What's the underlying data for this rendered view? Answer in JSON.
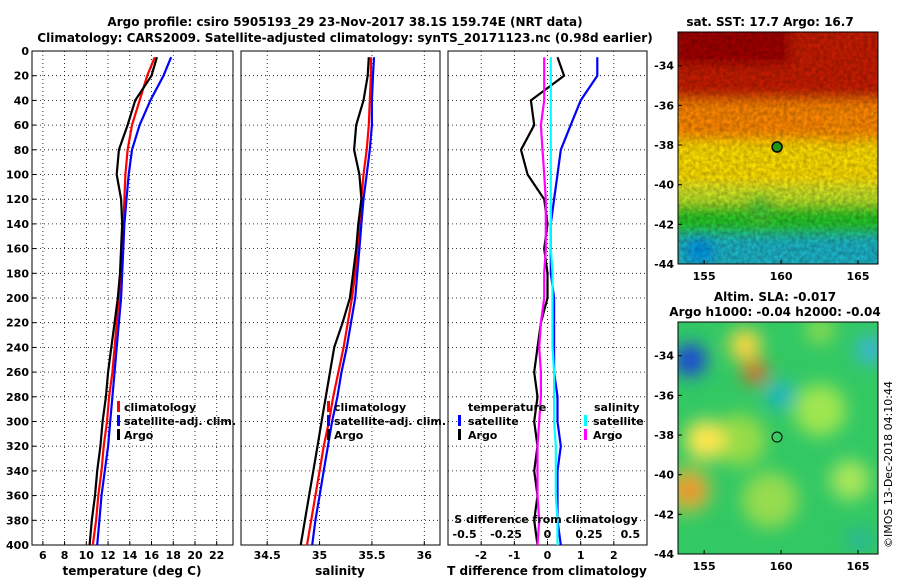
{
  "header": {
    "title1": "Argo profile: csiro 5905193_29 23-Nov-2017 38.1S 159.74E (NRT data)",
    "title2": "Climatology: CARS2009. Satellite-adjusted climatology: synTS_20171123.nc (0.98d earlier)"
  },
  "credit": "©IMOS 13-Dec-2018 04:10:44",
  "colors": {
    "clim": "#ff0000",
    "sat": "#0000ff",
    "argo": "#000000",
    "sdiff_sat": "#00ffff",
    "sdiff_argo": "#ff00ff"
  },
  "chart_data": [
    {
      "type": "line",
      "id": "temperature",
      "xlabel": "temperature (deg C)",
      "xlim": [
        5,
        23.5
      ],
      "xticks": [
        6,
        8,
        10,
        12,
        14,
        16,
        18,
        20,
        22
      ],
      "ylim": [
        0,
        400
      ],
      "yticks": [
        0,
        20,
        40,
        60,
        80,
        100,
        120,
        140,
        160,
        180,
        200,
        220,
        240,
        260,
        280,
        300,
        320,
        340,
        360,
        380,
        400
      ],
      "grid": true,
      "legend": [
        "climatology",
        "satellite-adj. clim.",
        "Argo"
      ],
      "depth": [
        5,
        20,
        40,
        60,
        80,
        100,
        120,
        140,
        160,
        180,
        200,
        220,
        240,
        260,
        280,
        300,
        320,
        340,
        360,
        380,
        400
      ],
      "series": [
        {
          "name": "climatology",
          "values": [
            16.3,
            15.6,
            14.9,
            14.2,
            13.8,
            13.6,
            13.5,
            13.4,
            13.3,
            13.2,
            13.0,
            12.8,
            12.6,
            12.4,
            12.1,
            11.9,
            11.6,
            11.4,
            11.1,
            10.9,
            10.6
          ]
        },
        {
          "name": "satellite-adj. clim.",
          "values": [
            17.8,
            17.1,
            15.9,
            14.9,
            14.2,
            13.9,
            13.7,
            13.5,
            13.4,
            13.3,
            13.2,
            13.0,
            12.8,
            12.6,
            12.4,
            12.2,
            12.0,
            11.7,
            11.4,
            11.2,
            11.0
          ]
        },
        {
          "name": "Argo",
          "values": [
            16.5,
            16.0,
            14.5,
            13.8,
            13.0,
            12.8,
            13.2,
            13.3,
            13.2,
            13.1,
            12.9,
            12.6,
            12.3,
            12.0,
            11.8,
            11.5,
            11.3,
            11.0,
            10.8,
            10.5,
            10.3
          ]
        }
      ]
    },
    {
      "type": "line",
      "id": "salinity",
      "xlabel": "salinity",
      "xlim": [
        34.25,
        36.15
      ],
      "xticks": [
        34.5,
        35,
        35.5,
        36
      ],
      "ylim": [
        0,
        400
      ],
      "grid": true,
      "legend": [
        "climatology",
        "satellite-adj. clim.",
        "Argo"
      ],
      "depth": [
        5,
        20,
        40,
        60,
        80,
        100,
        120,
        140,
        160,
        180,
        200,
        220,
        240,
        260,
        280,
        300,
        320,
        340,
        360,
        380,
        400
      ],
      "series": [
        {
          "name": "climatology",
          "values": [
            35.49,
            35.49,
            35.48,
            35.47,
            35.45,
            35.42,
            35.4,
            35.38,
            35.36,
            35.34,
            35.31,
            35.27,
            35.23,
            35.18,
            35.13,
            35.09,
            35.04,
            35.0,
            34.96,
            34.92,
            34.88
          ]
        },
        {
          "name": "satellite-adj. clim.",
          "values": [
            35.52,
            35.51,
            35.5,
            35.5,
            35.48,
            35.45,
            35.42,
            35.4,
            35.38,
            35.36,
            35.34,
            35.3,
            35.26,
            35.21,
            35.17,
            35.12,
            35.08,
            35.04,
            35.0,
            34.96,
            34.93
          ]
        },
        {
          "name": "Argo",
          "values": [
            35.47,
            35.46,
            35.42,
            35.35,
            35.33,
            35.38,
            35.4,
            35.37,
            35.35,
            35.32,
            35.29,
            35.22,
            35.14,
            35.1,
            35.06,
            35.02,
            34.98,
            34.94,
            34.9,
            34.86,
            34.82
          ]
        }
      ]
    },
    {
      "type": "line",
      "id": "difference",
      "xlabel": "T difference from climatology",
      "xlim": [
        -3,
        3
      ],
      "xticks": [
        -2,
        -1,
        0,
        1,
        2
      ],
      "ylim": [
        0,
        400
      ],
      "grid": true,
      "legend_temperature": {
        "title": "temperature",
        "entries": [
          "satellite",
          "Argo"
        ]
      },
      "legend_salinity": {
        "title": "salinity",
        "entries": [
          "satellite",
          "Argo"
        ]
      },
      "s_axis": {
        "label": "S difference from climatology",
        "ticks": [
          "-0.5",
          "-0.25",
          "0",
          "0.25",
          "0.5"
        ],
        "range": [
          -0.6,
          0.6
        ]
      },
      "depth": [
        5,
        20,
        40,
        60,
        80,
        100,
        120,
        140,
        160,
        180,
        200,
        220,
        240,
        260,
        280,
        300,
        320,
        340,
        360,
        380,
        400
      ],
      "series": [
        {
          "name": "T satellite",
          "values": [
            1.5,
            1.5,
            1.0,
            0.7,
            0.4,
            0.3,
            0.2,
            0.1,
            0.1,
            0.1,
            0.2,
            0.2,
            0.2,
            0.2,
            0.3,
            0.3,
            0.4,
            0.3,
            0.3,
            0.3,
            0.4
          ]
        },
        {
          "name": "T Argo",
          "values": [
            0.3,
            0.5,
            -0.5,
            -0.4,
            -0.8,
            -0.6,
            -0.1,
            0.0,
            -0.1,
            0.0,
            0.0,
            -0.2,
            -0.3,
            -0.4,
            -0.3,
            -0.4,
            -0.3,
            -0.4,
            -0.3,
            -0.4,
            -0.3
          ]
        },
        {
          "name": "S satellite",
          "values": [
            0.02,
            0.02,
            0.02,
            0.02,
            0.02,
            0.02,
            0.02,
            0.02,
            0.02,
            0.03,
            0.03,
            0.03,
            0.03,
            0.04,
            0.04,
            0.04,
            0.05,
            0.05,
            0.05,
            0.06,
            0.06
          ]
        },
        {
          "name": "S Argo",
          "values": [
            -0.02,
            -0.02,
            -0.02,
            -0.04,
            -0.03,
            -0.02,
            -0.01,
            -0.01,
            -0.01,
            -0.02,
            -0.02,
            -0.04,
            -0.05,
            -0.04,
            -0.04,
            -0.05,
            -0.06,
            -0.06,
            -0.06,
            -0.05,
            -0.06
          ]
        }
      ]
    },
    {
      "type": "heatmap",
      "id": "sst-map",
      "title": "sat. SST: 17.7 Argo: 16.7",
      "xlim": [
        153.3,
        166.3
      ],
      "ylim": [
        -44,
        -32.3
      ],
      "xticks": [
        155,
        160,
        165
      ],
      "yticks": [
        -44,
        -42,
        -40,
        -38,
        -36,
        -34
      ],
      "marker": [
        159.74,
        -38.1
      ]
    },
    {
      "type": "heatmap",
      "id": "sla-map",
      "title": "Altim. SLA: -0.017",
      "subtitle": "Argo h1000: -0.04 h2000: -0.04",
      "xlim": [
        153.3,
        166.3
      ],
      "ylim": [
        -44,
        -32.3
      ],
      "xticks": [
        155,
        160,
        165
      ],
      "yticks": [
        -44,
        -42,
        -40,
        -38,
        -36,
        -34
      ],
      "marker": [
        159.74,
        -38.1
      ]
    }
  ]
}
